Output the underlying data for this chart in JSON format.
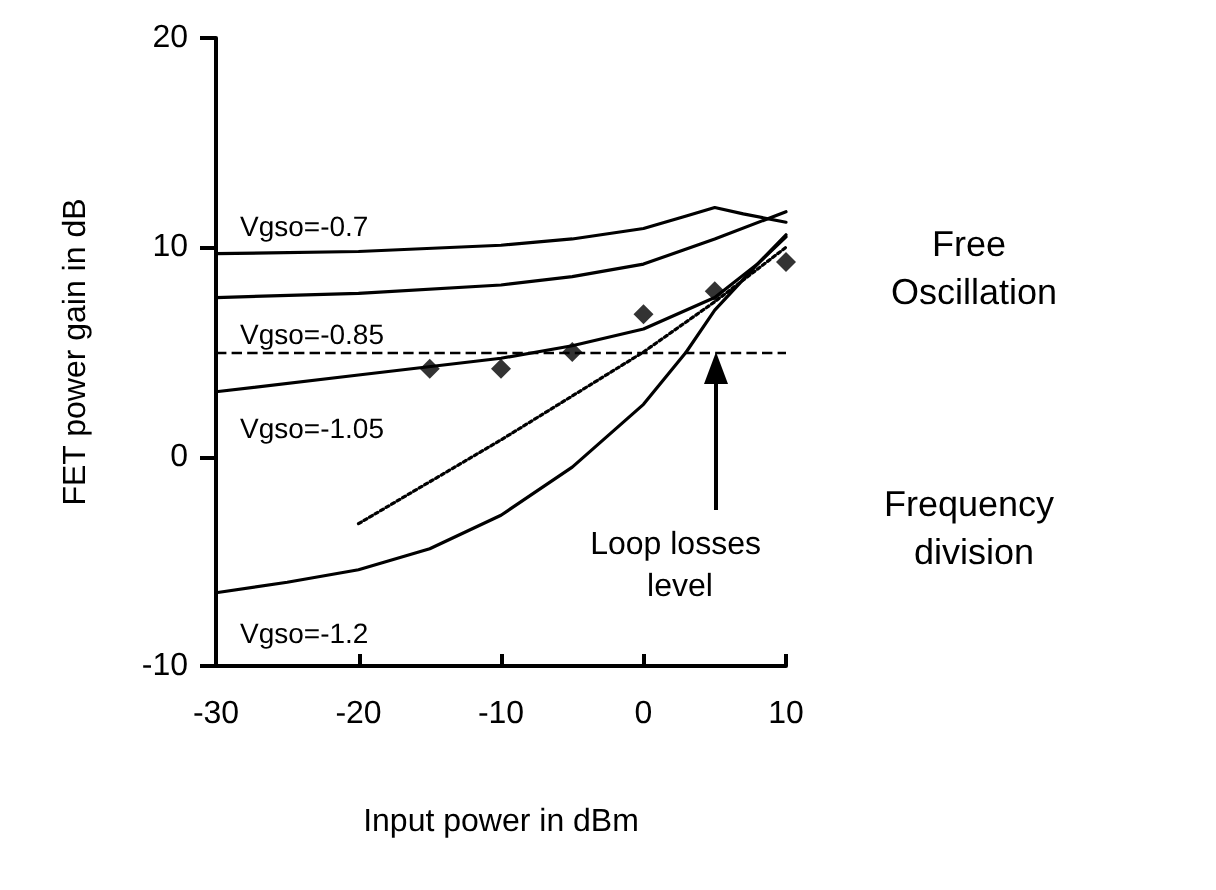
{
  "chart_data": {
    "type": "line",
    "xlabel": "Input power in dBm",
    "ylabel": "FET power gain in dB",
    "xlim": [
      -30,
      10
    ],
    "xticks": [
      -30,
      -20,
      -10,
      0,
      10
    ],
    "ylim": [
      -10,
      20
    ],
    "yticks": [
      -10,
      0,
      10,
      20
    ],
    "grid": false,
    "legend": false,
    "marker": "none",
    "line_style": "solid",
    "series": [
      {
        "name": "Vgso=-0.7",
        "color": "#000000",
        "x": [
          -30,
          -20,
          -10,
          -5,
          0,
          3,
          5,
          7,
          10
        ],
        "values": [
          9.7,
          9.8,
          10.1,
          10.4,
          10.9,
          11.5,
          11.9,
          11.6,
          11.2
        ]
      },
      {
        "name": "Vgso=-0.85",
        "color": "#000000",
        "x": [
          -30,
          -20,
          -10,
          -5,
          0,
          5,
          10
        ],
        "values": [
          7.6,
          7.8,
          8.2,
          8.6,
          9.2,
          10.4,
          11.7
        ]
      },
      {
        "name": "Vgso=-1.05",
        "color": "#000000",
        "x": [
          -30,
          -20,
          -10,
          -5,
          0,
          5,
          8,
          10
        ],
        "values": [
          3.1,
          3.9,
          4.7,
          5.3,
          6.1,
          7.6,
          9.2,
          10.5
        ]
      },
      {
        "name": "Vgso=-1.2",
        "color": "#000000",
        "x": [
          -30,
          -25,
          -20,
          -15,
          -10,
          -5,
          0,
          3,
          5,
          8,
          10
        ],
        "values": [
          -6.5,
          -6.0,
          -5.4,
          -4.4,
          -2.8,
          -0.5,
          2.5,
          5,
          7,
          9.2,
          10.6
        ]
      },
      {
        "type": "line",
        "color": "#000000",
        "line_style": "dotted",
        "x": [
          -20,
          -10,
          0,
          5,
          10
        ],
        "values": [
          -3.2,
          0.8,
          5.0,
          7.4,
          10.0
        ]
      },
      {
        "type": "scatter",
        "marker": "diamond",
        "color": "#000000",
        "x": [
          -15,
          -10,
          -5,
          0,
          5,
          10
        ],
        "values": [
          4.2,
          4.2,
          5.0,
          6.8,
          7.9,
          9.3
        ]
      }
    ],
    "ref_lines": [
      {
        "axis": "y",
        "value": 5,
        "line_style": "dashed",
        "color": "#000000"
      }
    ],
    "annotations": [
      "Free Oscillation",
      "Frequency division",
      "Loop losses level"
    ]
  }
}
